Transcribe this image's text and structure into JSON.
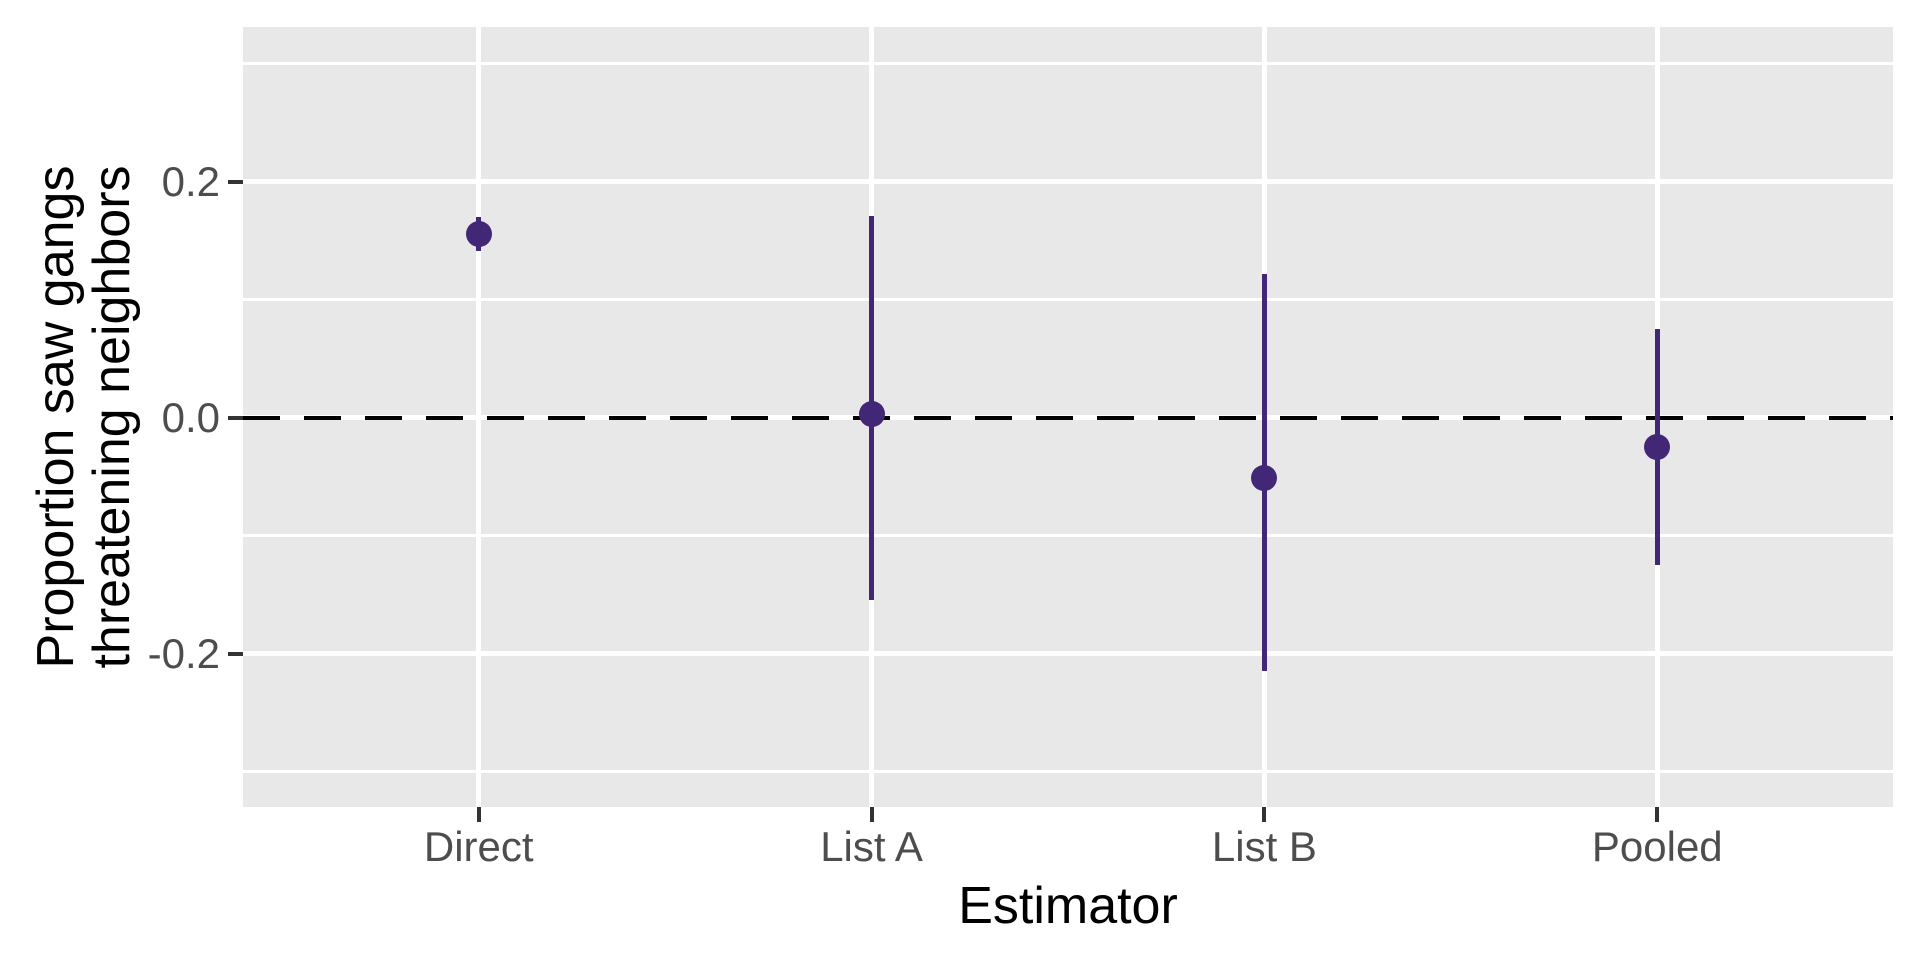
{
  "figure": {
    "background": "#ffffff",
    "panel_background": "#e8e8e8",
    "grid_color": "#ffffff",
    "axis_text_color": "#4d4d4d",
    "axis_title_color": "#000000",
    "tick_mark_color": "#333333"
  },
  "chart_data": {
    "type": "pointrange",
    "title": "",
    "xlabel": "Estimator",
    "ylabel": "Proportion saw gangs threatening neighbors",
    "ylabel_lines": [
      "Proportion saw gangs",
      "threatening neighbors"
    ],
    "categories": [
      "Direct",
      "List A",
      "List B",
      "Pooled"
    ],
    "points": [
      {
        "category": "Direct",
        "estimate": 0.156,
        "ci_low": 0.141,
        "ci_high": 0.17
      },
      {
        "category": "List A",
        "estimate": 0.003,
        "ci_low": -0.155,
        "ci_high": 0.171
      },
      {
        "category": "List B",
        "estimate": -0.051,
        "ci_low": -0.215,
        "ci_high": 0.122
      },
      {
        "category": "Pooled",
        "estimate": -0.025,
        "ci_low": -0.125,
        "ci_high": 0.075
      }
    ],
    "reference_line": {
      "y": 0,
      "style": "dashed",
      "color": "#000000"
    },
    "point_color": "#432777",
    "ylim": [
      -0.33,
      0.331
    ],
    "y_major_ticks": [
      0.2,
      0.0,
      -0.2
    ],
    "y_tick_labels": [
      "0.2",
      "0.0",
      "-0.2"
    ],
    "y_minor_ticks": [
      0.3,
      0.1,
      -0.1,
      -0.3
    ],
    "grid": "major+minor",
    "legend": "none"
  }
}
